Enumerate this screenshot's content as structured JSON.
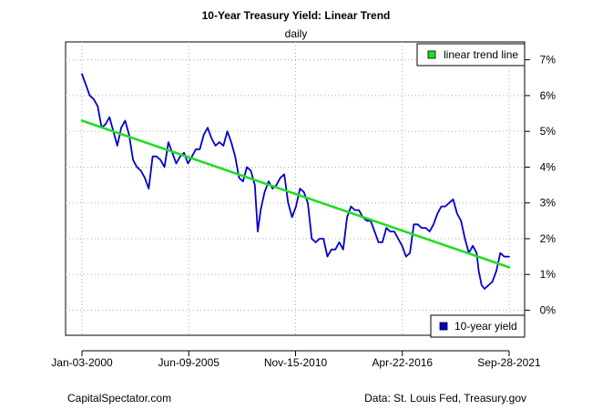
{
  "header": {
    "title": "10-Year Treasury Yield: Linear Trend",
    "subtitle": "daily"
  },
  "footer": {
    "left": "CapitalSpectator.com",
    "right": "Data: St. Louis Fed, Treasury.gov"
  },
  "chart_data": {
    "type": "line",
    "title": "10-Year Treasury Yield: Linear Trend",
    "subtitle": "daily",
    "xlabel": "",
    "ylabel": "",
    "x_tick_labels": [
      "Jan-03-2000",
      "Jun-09-2005",
      "Nov-15-2010",
      "Apr-22-2016",
      "Sep-28-2021"
    ],
    "y_tick_labels": [
      "0%",
      "1%",
      "2%",
      "3%",
      "4%",
      "5%",
      "6%",
      "7%"
    ],
    "y_ticks": [
      0,
      1,
      2,
      3,
      4,
      5,
      6,
      7
    ],
    "ylim": [
      -0.7,
      7.5
    ],
    "xlim": [
      2000.0,
      2021.75
    ],
    "grid": true,
    "series": [
      {
        "name": "10-year yield",
        "color": "#0000cd",
        "x": [
          2000.0,
          2000.2,
          2000.4,
          2000.6,
          2000.8,
          2001.0,
          2001.2,
          2001.4,
          2001.6,
          2001.8,
          2002.0,
          2002.2,
          2002.4,
          2002.6,
          2002.8,
          2003.0,
          2003.2,
          2003.4,
          2003.6,
          2003.8,
          2004.0,
          2004.2,
          2004.4,
          2004.6,
          2004.8,
          2005.0,
          2005.2,
          2005.4,
          2005.6,
          2005.8,
          2006.0,
          2006.2,
          2006.4,
          2006.6,
          2006.8,
          2007.0,
          2007.2,
          2007.4,
          2007.6,
          2007.8,
          2008.0,
          2008.2,
          2008.4,
          2008.6,
          2008.8,
          2008.95,
          2009.1,
          2009.3,
          2009.5,
          2009.7,
          2009.9,
          2010.1,
          2010.3,
          2010.5,
          2010.7,
          2010.9,
          2011.1,
          2011.3,
          2011.5,
          2011.7,
          2011.9,
          2012.1,
          2012.3,
          2012.5,
          2012.7,
          2012.9,
          2013.1,
          2013.3,
          2013.5,
          2013.7,
          2013.9,
          2014.1,
          2014.3,
          2014.5,
          2014.7,
          2014.9,
          2015.1,
          2015.3,
          2015.5,
          2015.7,
          2015.9,
          2016.1,
          2016.3,
          2016.5,
          2016.7,
          2016.9,
          2017.1,
          2017.3,
          2017.5,
          2017.7,
          2017.9,
          2018.1,
          2018.3,
          2018.5,
          2018.7,
          2018.9,
          2019.1,
          2019.3,
          2019.5,
          2019.7,
          2019.9,
          2020.1,
          2020.2,
          2020.35,
          2020.5,
          2020.7,
          2020.9,
          2021.1,
          2021.3,
          2021.5,
          2021.75
        ],
        "values": [
          6.6,
          6.3,
          6.0,
          5.9,
          5.7,
          5.1,
          5.2,
          5.4,
          5.0,
          4.6,
          5.1,
          5.3,
          4.9,
          4.2,
          4.0,
          3.9,
          3.7,
          3.4,
          4.3,
          4.3,
          4.2,
          4.0,
          4.7,
          4.4,
          4.1,
          4.3,
          4.4,
          4.1,
          4.3,
          4.5,
          4.5,
          4.9,
          5.1,
          4.8,
          4.6,
          4.7,
          4.6,
          5.0,
          4.7,
          4.3,
          3.7,
          3.6,
          4.0,
          3.9,
          3.5,
          2.2,
          2.8,
          3.3,
          3.6,
          3.4,
          3.5,
          3.7,
          3.8,
          3.0,
          2.6,
          2.9,
          3.4,
          3.3,
          3.0,
          2.0,
          1.9,
          2.0,
          2.0,
          1.5,
          1.7,
          1.7,
          1.9,
          1.7,
          2.6,
          2.9,
          2.8,
          2.8,
          2.6,
          2.5,
          2.5,
          2.2,
          1.9,
          1.9,
          2.3,
          2.2,
          2.2,
          2.0,
          1.8,
          1.5,
          1.6,
          2.4,
          2.4,
          2.3,
          2.3,
          2.2,
          2.4,
          2.7,
          2.9,
          2.9,
          3.0,
          3.1,
          2.7,
          2.5,
          2.0,
          1.6,
          1.8,
          1.6,
          1.1,
          0.7,
          0.6,
          0.7,
          0.8,
          1.1,
          1.6,
          1.5,
          1.5
        ]
      },
      {
        "name": "linear trend line",
        "color": "#22dd22",
        "x": [
          2000.0,
          2021.75
        ],
        "values": [
          5.3,
          1.2
        ]
      }
    ],
    "legend": [
      {
        "label": "linear trend line",
        "color": "#22dd22",
        "placement": "top-right"
      },
      {
        "label": "10-year yield",
        "color": "#0000cd",
        "placement": "bottom-right"
      }
    ]
  }
}
